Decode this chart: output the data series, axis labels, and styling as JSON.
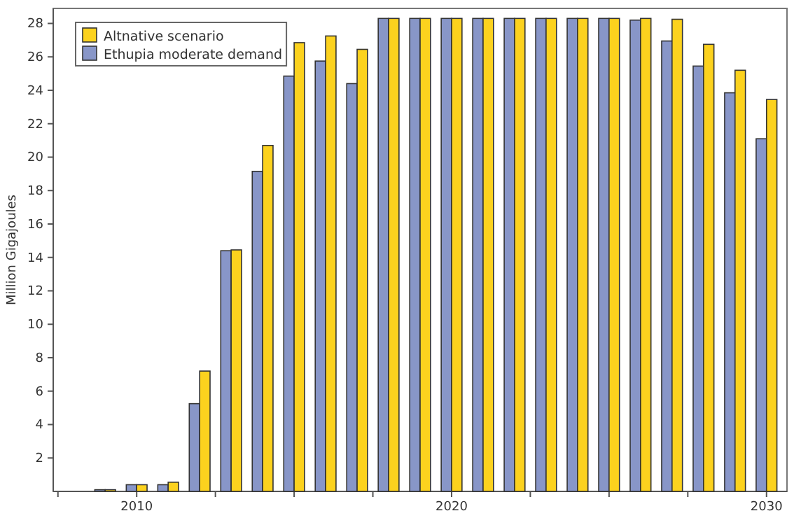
{
  "chart_data": {
    "type": "bar",
    "ylabel": "Million Gigajoules",
    "x": [
      2009,
      2010,
      2011,
      2012,
      2013,
      2014,
      2015,
      2016,
      2017,
      2018,
      2019,
      2020,
      2021,
      2022,
      2023,
      2024,
      2025,
      2026,
      2027,
      2028,
      2029,
      2030
    ],
    "series": [
      {
        "name": "Ethupia moderate demand",
        "color": "#8896c8",
        "values": [
          0.1,
          0.4,
          0.4,
          5.25,
          14.4,
          19.15,
          24.85,
          25.75,
          24.4,
          28.3,
          28.3,
          28.3,
          28.3,
          28.3,
          28.3,
          28.3,
          28.3,
          28.2,
          26.95,
          25.45,
          23.85,
          21.1
        ]
      },
      {
        "name": "Altnative scenario",
        "color": "#fcd21e",
        "values": [
          0.1,
          0.4,
          0.55,
          7.2,
          14.45,
          20.7,
          26.85,
          27.25,
          26.45,
          28.3,
          28.3,
          28.3,
          28.3,
          28.3,
          28.3,
          28.3,
          28.3,
          28.3,
          28.25,
          26.75,
          25.2,
          23.45
        ]
      }
    ],
    "xlim": [
      2007.35,
      2030.65
    ],
    "xticks": [
      {
        "value": 2007.5,
        "label": null
      },
      2010,
      {
        "value": 2012.5,
        "label": null
      },
      {
        "value": 2015,
        "label": null
      },
      {
        "value": 2017.5,
        "label": null
      },
      2020,
      {
        "value": 2022.5,
        "label": null
      },
      {
        "value": 2025,
        "label": null
      },
      {
        "value": 2027.5,
        "label": null
      },
      2030
    ],
    "ylim": [
      0,
      28.9
    ],
    "yticks": [
      2,
      4,
      6,
      8,
      10,
      12,
      14,
      16,
      18,
      20,
      22,
      24,
      26,
      28
    ],
    "legend": "top left",
    "grid": false
  }
}
